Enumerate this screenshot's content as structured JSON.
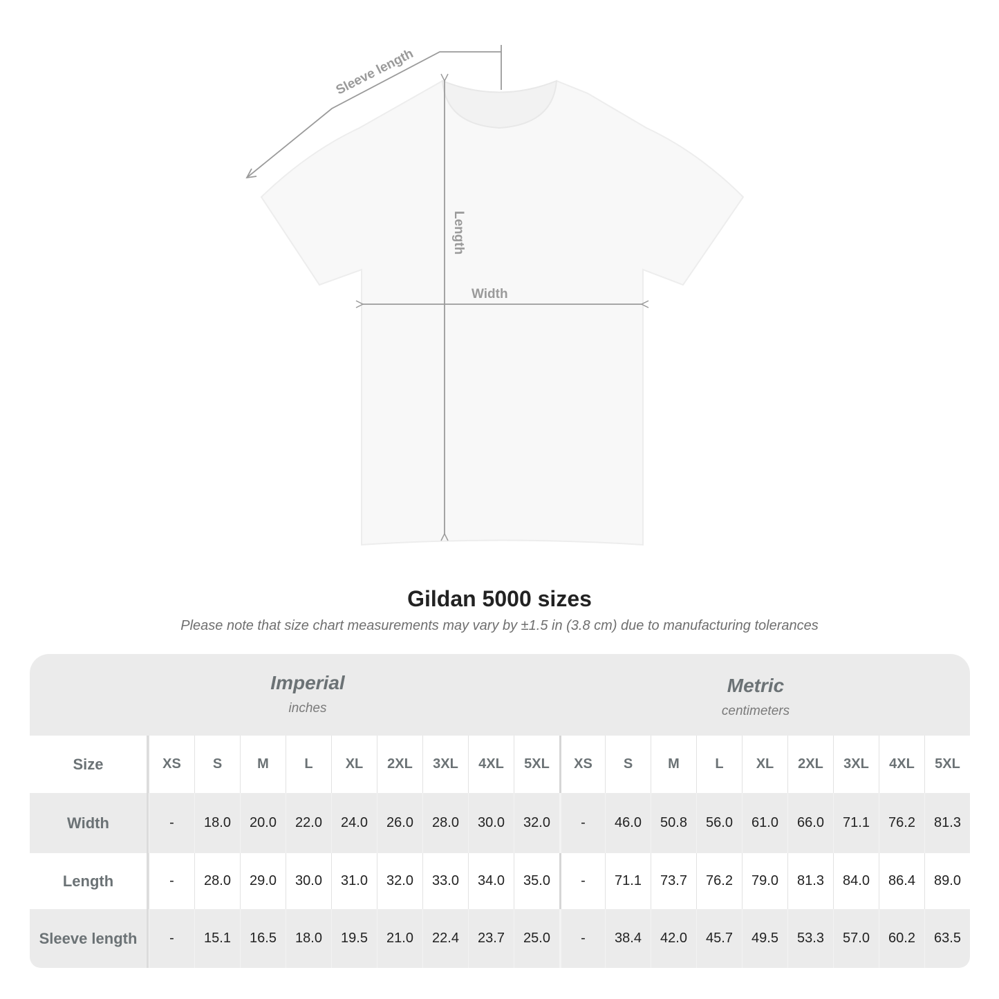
{
  "diagram": {
    "sleeve_label": "Sleeve length",
    "length_label": "Length",
    "width_label": "Width"
  },
  "title": "Gildan 5000 sizes",
  "note": "Please note that size chart measurements may vary by ±1.5 in (3.8 cm) due to manufacturing tolerances",
  "table": {
    "imperial": {
      "name": "Imperial",
      "unit": "inches"
    },
    "metric": {
      "name": "Metric",
      "unit": "centimeters"
    },
    "size_label": "Size",
    "sizes": [
      "XS",
      "S",
      "M",
      "L",
      "XL",
      "2XL",
      "3XL",
      "4XL",
      "5XL"
    ],
    "rows": [
      {
        "label": "Width",
        "imperial": [
          "-",
          "18.0",
          "20.0",
          "22.0",
          "24.0",
          "26.0",
          "28.0",
          "30.0",
          "32.0"
        ],
        "metric": [
          "-",
          "46.0",
          "50.8",
          "56.0",
          "61.0",
          "66.0",
          "71.1",
          "76.2",
          "81.3"
        ]
      },
      {
        "label": "Length",
        "imperial": [
          "-",
          "28.0",
          "29.0",
          "30.0",
          "31.0",
          "32.0",
          "33.0",
          "34.0",
          "35.0"
        ],
        "metric": [
          "-",
          "71.1",
          "73.7",
          "76.2",
          "79.0",
          "81.3",
          "84.0",
          "86.4",
          "89.0"
        ]
      },
      {
        "label": "Sleeve length",
        "imperial": [
          "-",
          "15.1",
          "16.5",
          "18.0",
          "19.5",
          "21.0",
          "22.4",
          "23.7",
          "25.0"
        ],
        "metric": [
          "-",
          "38.4",
          "42.0",
          "45.7",
          "49.5",
          "53.3",
          "57.0",
          "60.2",
          "63.5"
        ]
      }
    ]
  },
  "colors": {
    "line": "#9a9a9a",
    "header_bg": "#ebebeb",
    "label": "#6b7275"
  }
}
